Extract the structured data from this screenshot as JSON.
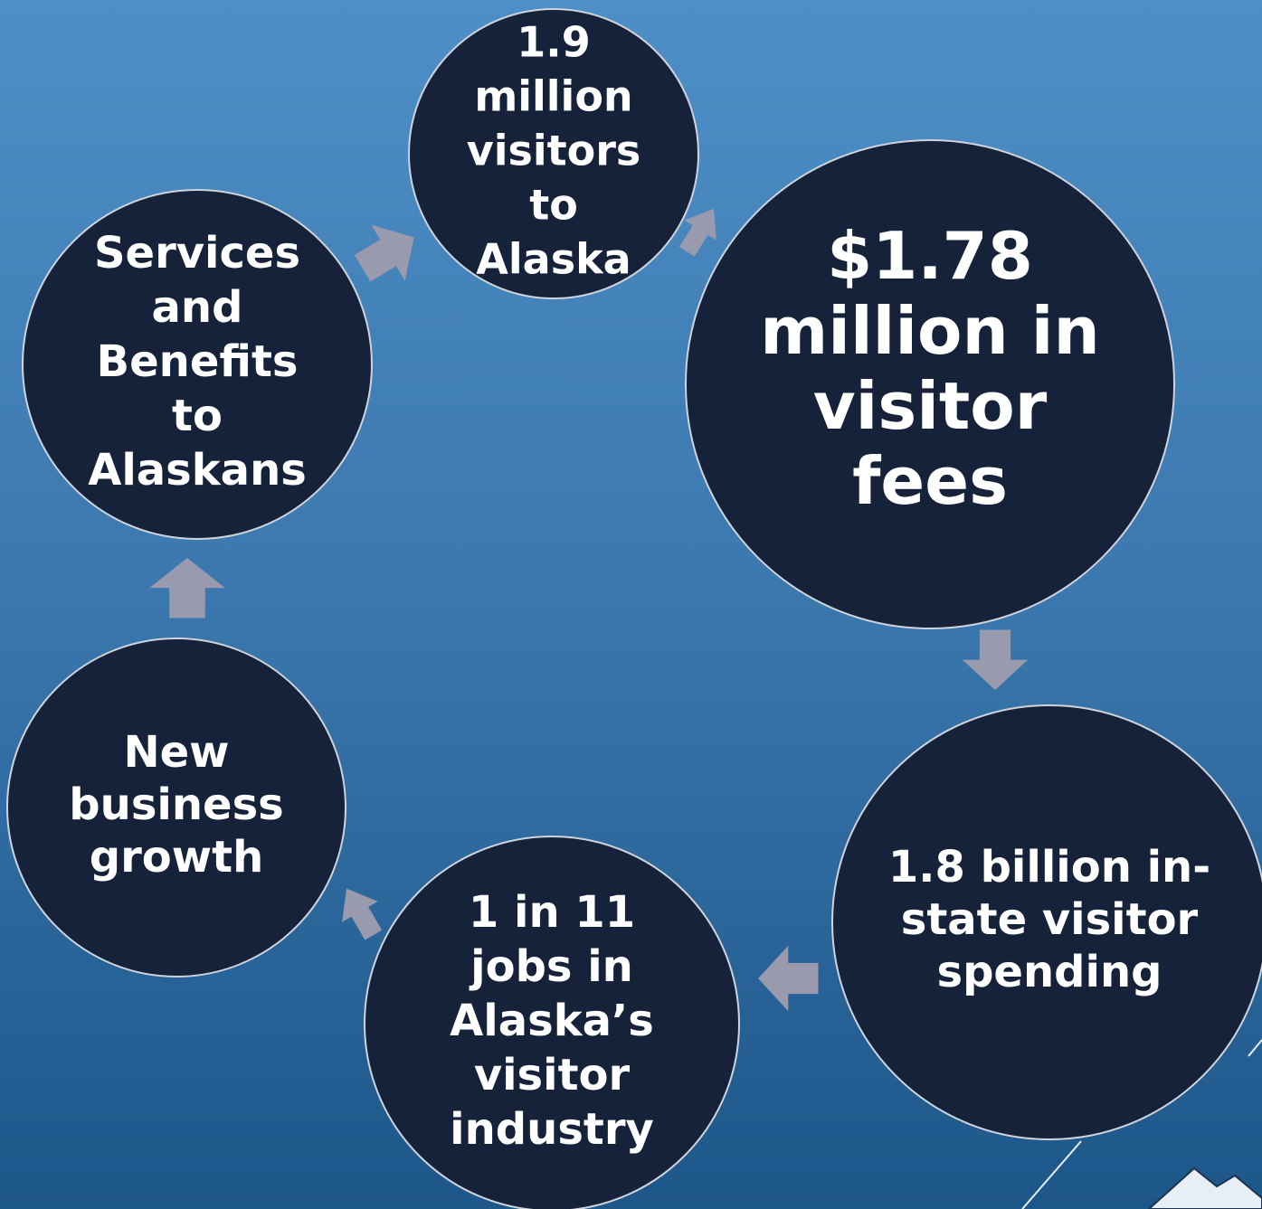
{
  "nodes": [
    {
      "lines": [
        "1.9",
        "million",
        "visitors",
        "to",
        "Alaska"
      ]
    },
    {
      "lines": [
        "$1.78",
        "million in",
        "visitor",
        "fees"
      ]
    },
    {
      "lines": [
        "1.8 billion in-",
        "state visitor",
        "spending"
      ]
    },
    {
      "lines": [
        "1 in 11",
        "jobs in",
        "Alaska’s",
        "visitor",
        "industry"
      ]
    },
    {
      "lines": [
        "New",
        "business",
        "growth"
      ]
    },
    {
      "lines": [
        "Services",
        "and",
        "Benefits",
        "to",
        "Alaskans"
      ]
    }
  ]
}
